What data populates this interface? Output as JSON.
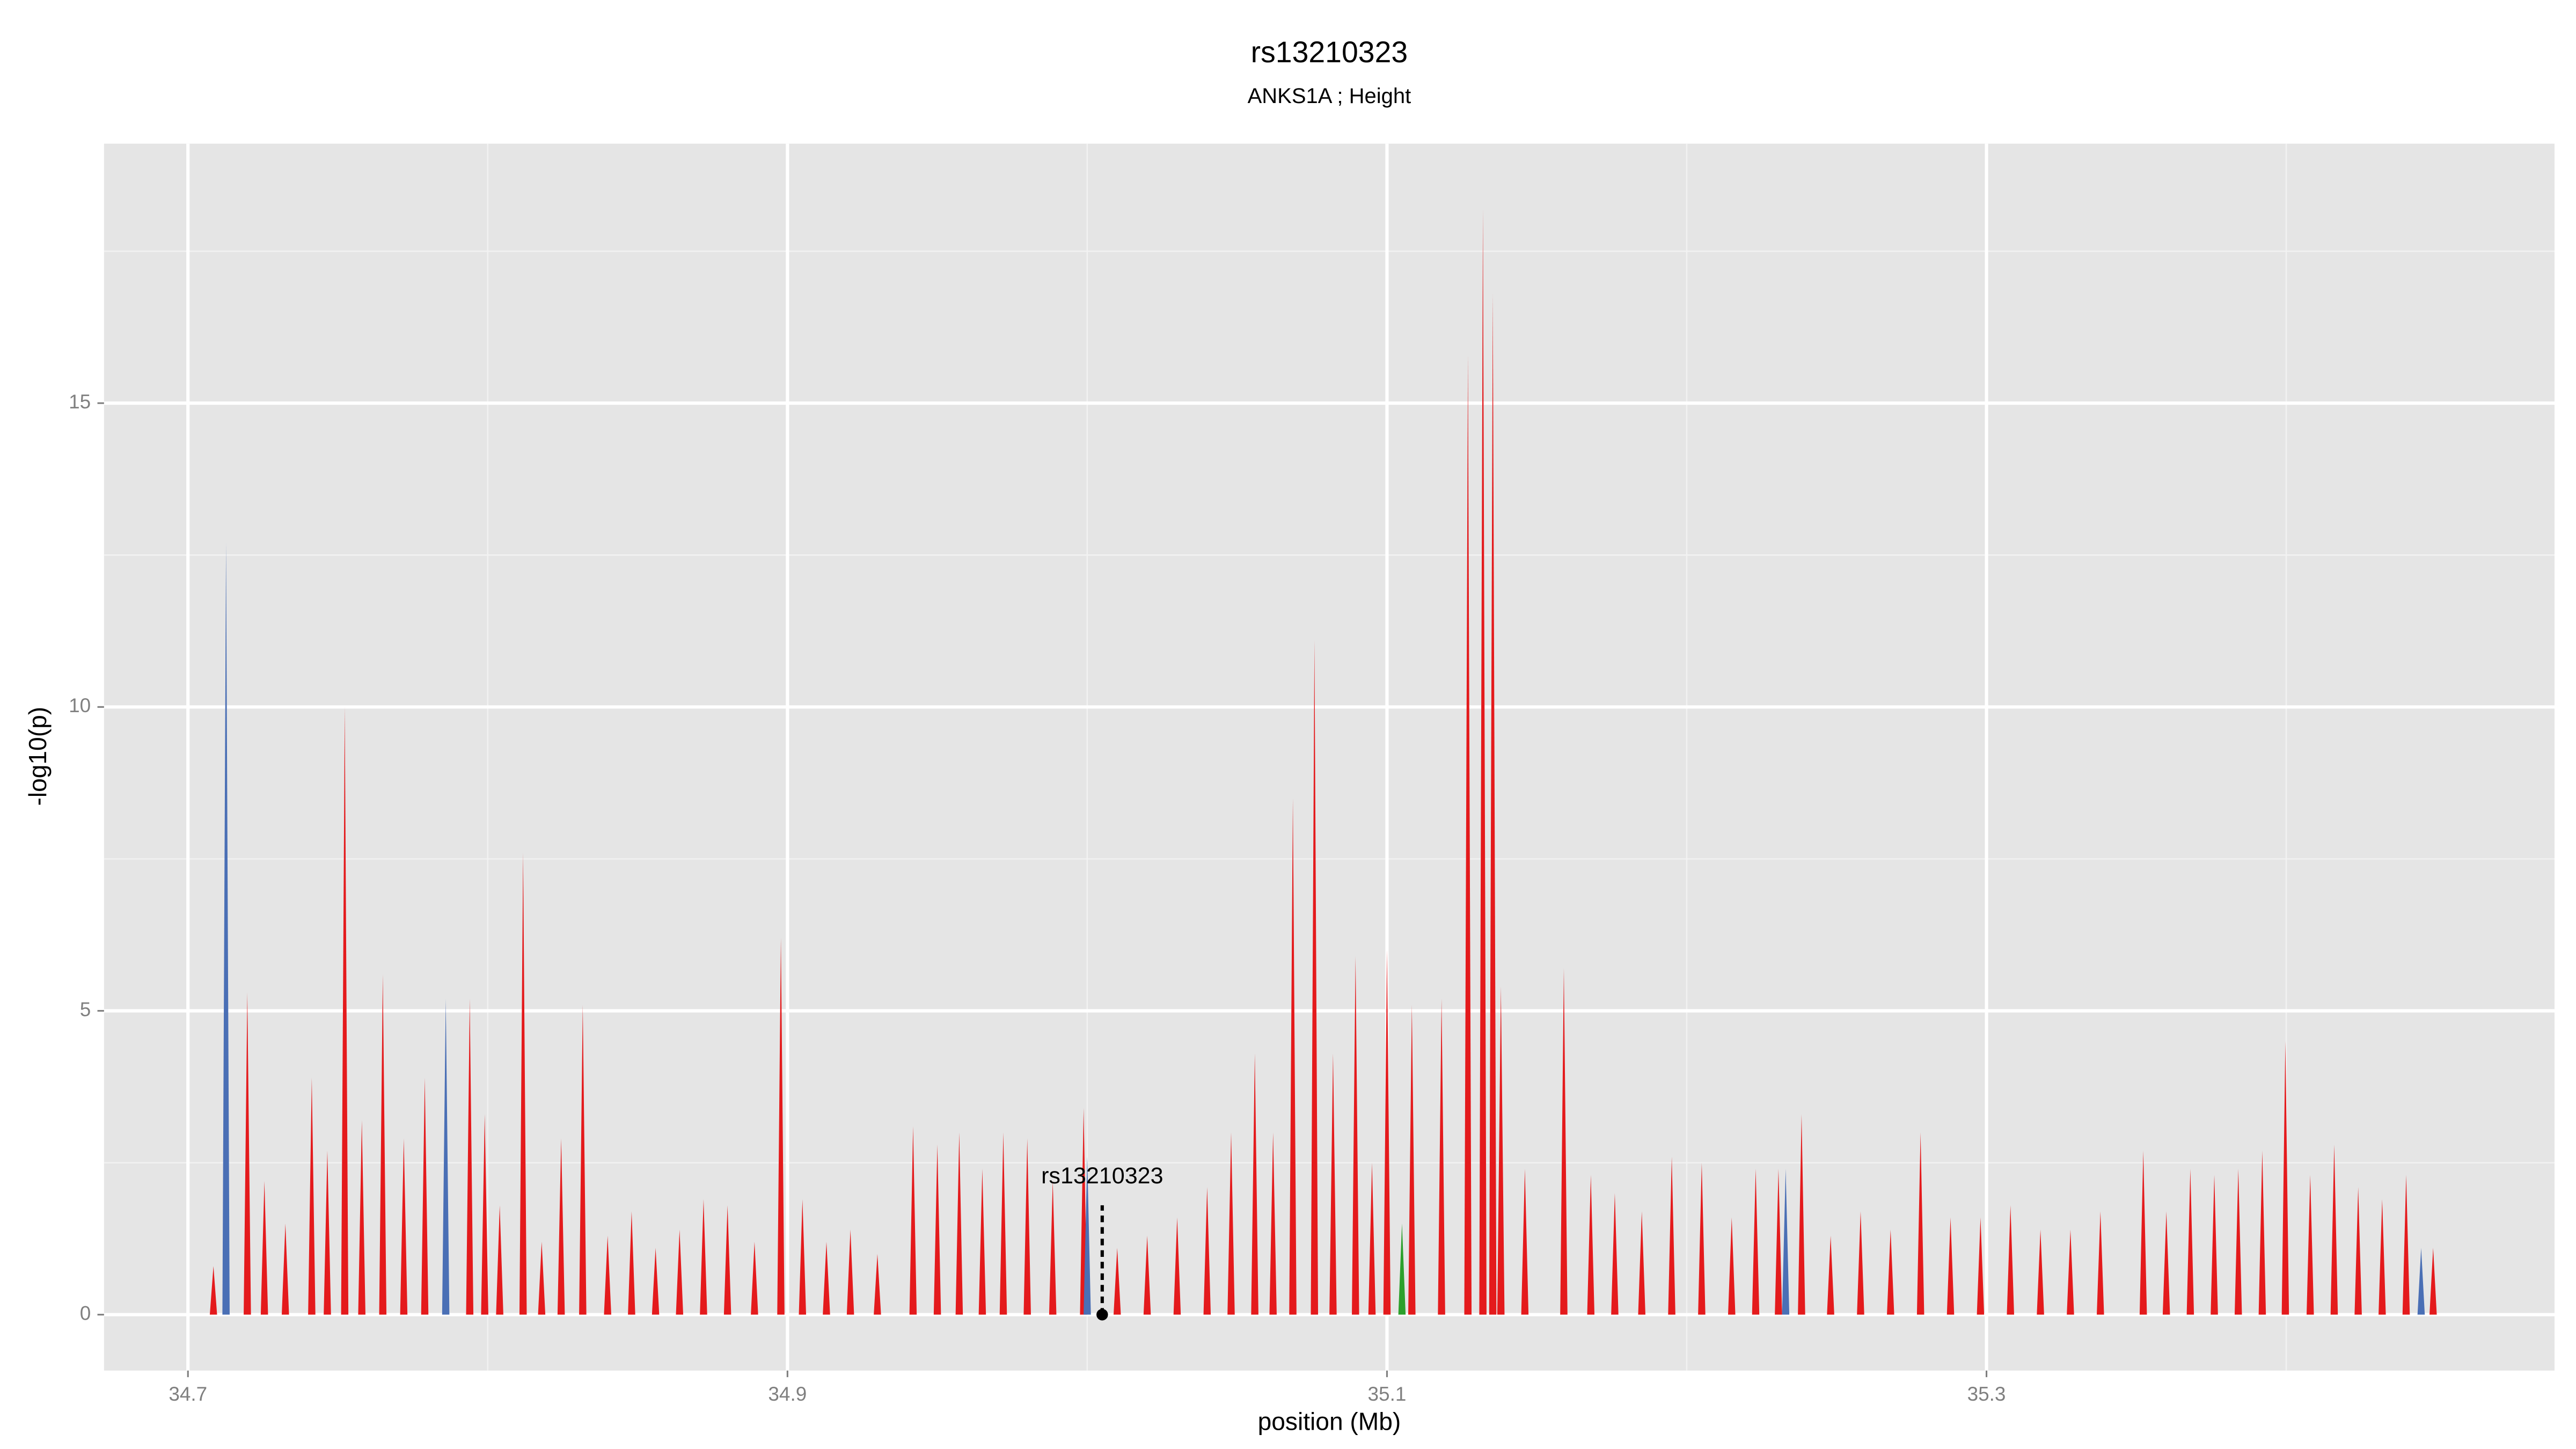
{
  "chart_data": {
    "type": "spike",
    "title": "rs13210323",
    "subtitle": "ANKS1A ; Height",
    "xlabel": "position (Mb)",
    "ylabel": "-log10(p)",
    "xlim": [
      34.672,
      35.4895
    ],
    "ylim": [
      -0.92,
      19.27
    ],
    "xticks": [
      34.7,
      34.9,
      35.1,
      35.3
    ],
    "yticks": [
      0,
      5,
      10,
      15
    ],
    "xminorticks": [
      34.8,
      35.0,
      35.2,
      35.4
    ],
    "yminorticks": [
      2.5,
      7.5,
      12.5,
      17.5
    ],
    "grid": true,
    "annotation": {
      "text": "rs13210323",
      "x": 35.005,
      "y": 1.8
    },
    "series": [
      {
        "color": "#e41a1c",
        "x": [
          34.7085,
          34.7198,
          34.7255,
          34.7325,
          34.7413,
          34.7465,
          34.7523,
          34.758,
          34.765,
          34.772,
          34.779,
          34.794,
          34.799,
          34.804,
          34.8118,
          34.818,
          34.8245,
          34.8317,
          34.84,
          34.848,
          34.856,
          34.864,
          34.872,
          34.88,
          34.889,
          34.8978,
          34.905,
          34.913,
          34.921,
          34.93,
          34.9419,
          34.95,
          34.9573,
          34.965,
          34.972,
          34.98,
          34.9885,
          34.9988,
          35.01,
          35.02,
          35.03,
          35.04,
          35.048,
          35.0559,
          35.062,
          35.0686,
          35.0758,
          35.082,
          35.0895,
          35.095,
          35.1,
          35.1083,
          35.1182,
          35.127,
          35.132,
          35.1353,
          35.138,
          35.146,
          35.159,
          35.168,
          35.176,
          35.185,
          35.195,
          35.205,
          35.215,
          35.223,
          35.2306,
          35.2383,
          35.248,
          35.258,
          35.268,
          35.278,
          35.288,
          35.298,
          35.308,
          35.318,
          35.328,
          35.338,
          35.3523,
          35.36,
          35.368,
          35.376,
          35.384,
          35.392,
          35.3997,
          35.408,
          35.416,
          35.424,
          35.432,
          35.44,
          35.449
        ],
        "values": [
          0.8,
          5.3,
          2.2,
          1.5,
          3.9,
          2.7,
          10.0,
          3.2,
          5.6,
          2.9,
          3.9,
          5.2,
          3.3,
          1.8,
          7.6,
          1.2,
          2.9,
          5.1,
          1.3,
          1.7,
          1.1,
          1.4,
          1.9,
          1.8,
          1.2,
          6.2,
          1.9,
          1.2,
          1.4,
          1.0,
          3.1,
          2.8,
          3.0,
          2.4,
          3.0,
          2.9,
          2.2,
          3.4,
          1.1,
          1.3,
          1.6,
          2.1,
          3.0,
          4.3,
          3.0,
          8.5,
          11.1,
          4.3,
          5.9,
          2.5,
          6.0,
          5.1,
          5.2,
          15.8,
          18.2,
          16.8,
          5.4,
          2.4,
          5.7,
          2.3,
          2.0,
          1.7,
          2.6,
          2.5,
          1.6,
          2.4,
          2.4,
          3.3,
          1.3,
          1.7,
          1.4,
          3.0,
          1.6,
          1.6,
          1.8,
          1.4,
          1.4,
          1.7,
          2.7,
          1.7,
          2.4,
          2.3,
          2.4,
          2.7,
          4.5,
          2.3,
          2.8,
          2.1,
          1.9,
          2.3,
          1.1
        ]
      },
      {
        "color": "#4a6fb5",
        "x": [
          34.7127,
          34.786,
          35.0,
          35.233,
          35.445
        ],
        "values": [
          12.7,
          5.2,
          2.6,
          2.4,
          1.1
        ]
      },
      {
        "color": "#2ca02c",
        "x": [
          35.105
        ],
        "values": [
          1.5
        ]
      }
    ]
  }
}
